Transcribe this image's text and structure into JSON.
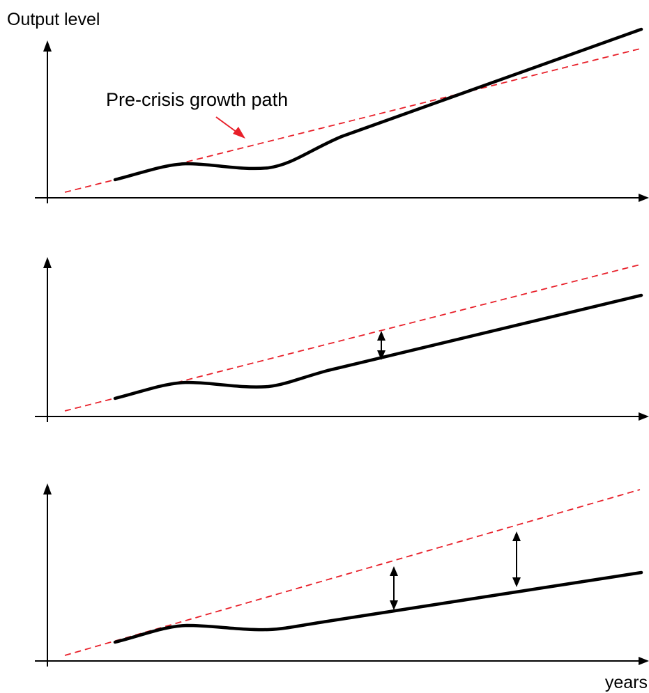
{
  "figure": {
    "y_axis_label": "Output level",
    "x_axis_label": "years",
    "annotation": "Pre-crisis growth path",
    "panels": [
      {
        "id": "panel-1",
        "gap_markers": 0
      },
      {
        "id": "panel-2",
        "gap_markers": 1
      },
      {
        "id": "panel-3",
        "gap_markers": 2
      }
    ],
    "colors": {
      "actual_path": "#000000",
      "pre_crisis_path": "#e8202a",
      "axes": "#000000"
    }
  }
}
